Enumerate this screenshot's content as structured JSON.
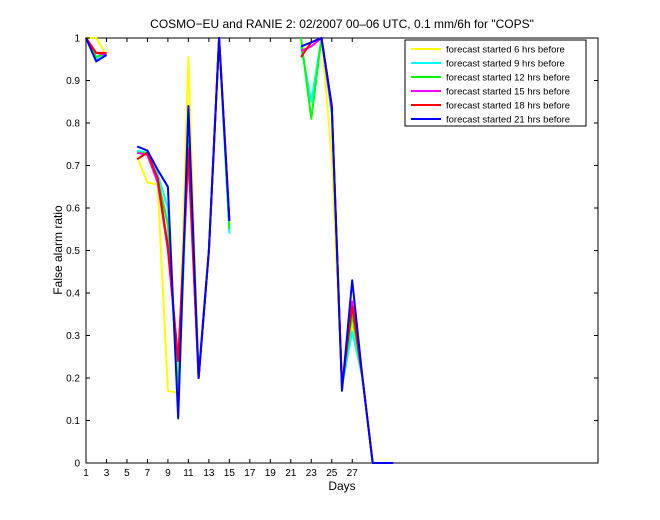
{
  "chart_data": {
    "type": "line",
    "title": "COSMO−EU and RANIE 2: 02/2007 00–06 UTC, 0.1 mm/6h for \"COPS\"",
    "xlabel": "Days",
    "ylabel": "False alarm ratio",
    "xlim": [
      1,
      51
    ],
    "ylim": [
      0,
      1
    ],
    "x_ticks": [
      1,
      3,
      5,
      7,
      9,
      11,
      13,
      15,
      17,
      19,
      21,
      23,
      25,
      27
    ],
    "y_ticks": [
      0,
      0.1,
      0.2,
      0.3,
      0.4,
      0.5,
      0.6,
      0.7,
      0.8,
      0.9,
      1
    ],
    "y_tick_labels": [
      "0",
      "0.1",
      "0.2",
      "0.3",
      "0.4",
      "0.5",
      "0.6",
      "0.7",
      "0.8",
      "0.9",
      "1"
    ],
    "grid": false,
    "legend_position": "top-right",
    "series": [
      {
        "name": "forecast started 6 hrs before",
        "color": "#ffff00",
        "segments": [
          [
            [
              1,
              1.0
            ],
            [
              2,
              1.0
            ],
            [
              3,
              0.96
            ]
          ],
          [
            [
              6,
              0.72
            ],
            [
              7,
              0.66
            ],
            [
              8,
              0.655
            ],
            [
              9,
              0.17
            ],
            [
              10,
              0.165
            ],
            [
              11,
              0.955
            ],
            [
              12,
              0.2
            ],
            [
              13,
              0.5
            ],
            [
              14,
              1.0
            ],
            [
              15,
              0.56
            ]
          ],
          [
            [
              22,
              0.98
            ],
            [
              23,
              0.99
            ],
            [
              24,
              1.0
            ],
            [
              25,
              0.72
            ],
            [
              26,
              0.18
            ],
            [
              27,
              0.33
            ],
            [
              28,
              0.2
            ],
            [
              29,
              0.0
            ],
            [
              31,
              0.0
            ]
          ]
        ]
      },
      {
        "name": "forecast started 9 hrs before",
        "color": "#00ffff",
        "segments": [
          [
            [
              1,
              1.0
            ],
            [
              2,
              0.95
            ],
            [
              3,
              0.96
            ]
          ],
          [
            [
              6,
              0.735
            ],
            [
              7,
              0.73
            ],
            [
              8,
              0.68
            ],
            [
              9,
              0.6
            ],
            [
              10,
              0.14
            ],
            [
              11,
              0.75
            ],
            [
              12,
              0.21
            ],
            [
              13,
              0.5
            ],
            [
              14,
              1.0
            ],
            [
              15,
              0.54
            ]
          ],
          [
            [
              22,
              0.98
            ],
            [
              23,
              0.85
            ],
            [
              24,
              1.0
            ],
            [
              25,
              0.82
            ],
            [
              26,
              0.18
            ],
            [
              27,
              0.31
            ],
            [
              28,
              0.2
            ],
            [
              29,
              0.0
            ],
            [
              31,
              0.0
            ]
          ]
        ]
      },
      {
        "name": "forecast started 12 hrs before",
        "color": "#00ff00",
        "segments": [
          [
            [
              1,
              1.0
            ],
            [
              2,
              0.955
            ],
            [
              3,
              0.965
            ]
          ],
          [
            [
              6,
              0.73
            ],
            [
              7,
              0.73
            ],
            [
              8,
              0.67
            ],
            [
              9,
              0.56
            ],
            [
              10,
              0.17
            ],
            [
              11,
              0.76
            ],
            [
              12,
              0.2
            ],
            [
              13,
              0.5
            ],
            [
              14,
              1.0
            ],
            [
              15,
              0.55
            ]
          ],
          [
            [
              22,
              1.0
            ],
            [
              23,
              0.81
            ],
            [
              24,
              1.0
            ],
            [
              25,
              0.84
            ],
            [
              26,
              0.18
            ],
            [
              27,
              0.35
            ],
            [
              28,
              0.2
            ],
            [
              29,
              0.0
            ],
            [
              31,
              0.0
            ]
          ]
        ]
      },
      {
        "name": "forecast started 15 hrs before",
        "color": "#ff00ff",
        "segments": [
          [
            [
              1,
              1.0
            ],
            [
              2,
              0.965
            ],
            [
              3,
              0.96
            ]
          ],
          [
            [
              6,
              0.73
            ],
            [
              7,
              0.725
            ],
            [
              8,
              0.66
            ],
            [
              9,
              0.5
            ],
            [
              10,
              0.24
            ],
            [
              11,
              0.72
            ],
            [
              12,
              0.2
            ],
            [
              13,
              0.5
            ],
            [
              14,
              1.0
            ],
            [
              15,
              0.57
            ]
          ],
          [
            [
              22,
              0.97
            ],
            [
              23,
              0.98
            ],
            [
              24,
              1.0
            ],
            [
              25,
              0.83
            ],
            [
              26,
              0.18
            ],
            [
              27,
              0.38
            ],
            [
              28,
              0.2
            ],
            [
              29,
              0.0
            ],
            [
              31,
              0.0
            ]
          ]
        ]
      },
      {
        "name": "forecast started 18 hrs before",
        "color": "#ff0000",
        "segments": [
          [
            [
              1,
              1.0
            ],
            [
              2,
              0.965
            ],
            [
              3,
              0.965
            ]
          ],
          [
            [
              6,
              0.715
            ],
            [
              7,
              0.73
            ],
            [
              8,
              0.67
            ],
            [
              9,
              0.51
            ],
            [
              10,
              0.24
            ],
            [
              11,
              0.74
            ],
            [
              12,
              0.2
            ],
            [
              13,
              0.5
            ],
            [
              14,
              1.0
            ],
            [
              15,
              0.57
            ]
          ],
          [
            [
              22,
              0.955
            ],
            [
              23,
              0.99
            ],
            [
              24,
              1.0
            ],
            [
              25,
              0.84
            ],
            [
              26,
              0.18
            ],
            [
              27,
              0.37
            ],
            [
              28,
              0.2
            ],
            [
              29,
              0.0
            ],
            [
              31,
              0.0
            ]
          ]
        ]
      },
      {
        "name": "forecast started 21 hrs before",
        "color": "#0000ff",
        "segments": [
          [
            [
              1,
              1.0
            ],
            [
              2,
              0.945
            ],
            [
              3,
              0.96
            ]
          ],
          [
            [
              6,
              0.745
            ],
            [
              7,
              0.735
            ],
            [
              8,
              0.69
            ],
            [
              9,
              0.65
            ],
            [
              10,
              0.105
            ],
            [
              11,
              0.84
            ],
            [
              12,
              0.2
            ],
            [
              13,
              0.5
            ],
            [
              14,
              1.0
            ],
            [
              15,
              0.57
            ]
          ],
          [
            [
              22,
              0.98
            ],
            [
              23,
              0.99
            ],
            [
              24,
              1.0
            ],
            [
              25,
              0.84
            ],
            [
              26,
              0.17
            ],
            [
              27,
              0.43
            ],
            [
              28,
              0.2
            ],
            [
              29,
              0.0
            ],
            [
              31,
              0.0
            ]
          ]
        ]
      }
    ]
  }
}
